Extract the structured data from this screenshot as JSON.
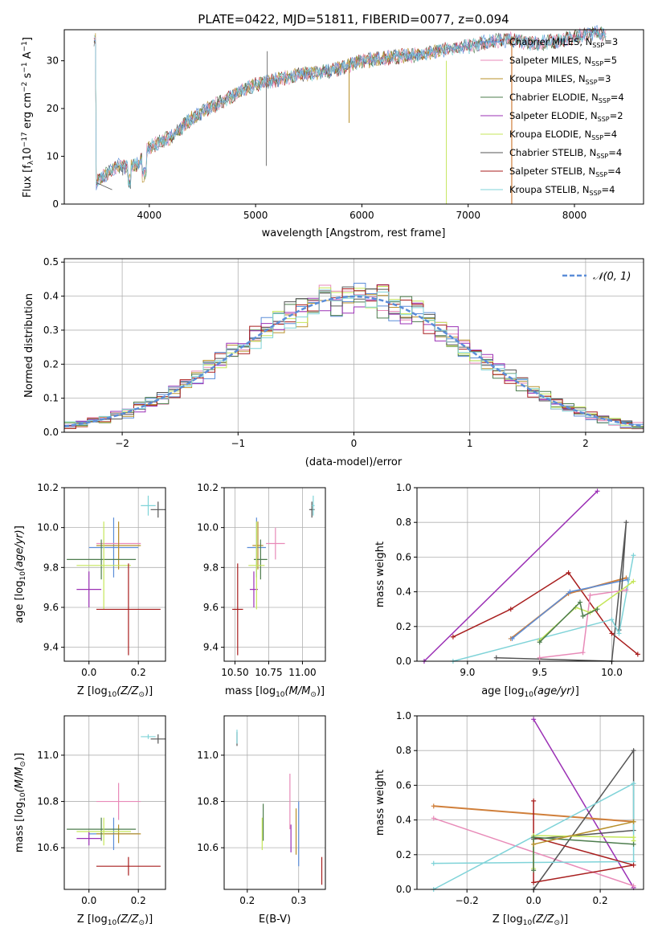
{
  "colors": {
    "chabrier_miles": "#5b8dd8",
    "salpeter_miles": "#e88ab8",
    "kroupa_miles": "#b8902a",
    "chabrier_elodie": "#4e7d4e",
    "salpeter_elodie": "#9b30b5",
    "kroupa_elodie": "#c5e65a",
    "chabrier_stelib": "#555555",
    "salpeter_stelib": "#a81e1e",
    "kroupa_stelib": "#7fd3d8",
    "orange_line": "#d07f3a"
  },
  "chart_data": [
    {
      "type": "line",
      "title": "PLATE=0422, MJD=51811, FIBERID=0077, z=0.094",
      "xlabel": "wavelength [Angstrom, rest frame]",
      "ylabel_parts": [
        "Flux [f",
        "λ",
        "10",
        "−17",
        " erg cm",
        "−2",
        " s",
        "−1",
        " A",
        "−1",
        "]"
      ],
      "xlim": [
        3200,
        8650
      ],
      "ylim": [
        0,
        36.5
      ],
      "xticks": [
        "4000",
        "5000",
        "6000",
        "7000",
        "8000"
      ],
      "yticks": [
        "0",
        "10",
        "20",
        "30"
      ],
      "legend_position": "top-right",
      "legend": [
        {
          "label": "Chabrier MILES, N",
          "sub": "SSP",
          "suffix": "=3",
          "color": "chabrier_miles"
        },
        {
          "label": "Salpeter MILES, N",
          "sub": "SSP",
          "suffix": "=5",
          "color": "salpeter_miles"
        },
        {
          "label": "Kroupa MILES, N",
          "sub": "SSP",
          "suffix": "=3",
          "color": "kroupa_miles"
        },
        {
          "label": "Chabrier ELODIE, N",
          "sub": "SSP",
          "suffix": "=4",
          "color": "chabrier_elodie"
        },
        {
          "label": "Salpeter ELODIE, N",
          "sub": "SSP",
          "suffix": "=2",
          "color": "salpeter_elodie"
        },
        {
          "label": "Kroupa ELODIE, N",
          "sub": "SSP",
          "suffix": "=4",
          "color": "kroupa_elodie"
        },
        {
          "label": "Chabrier STELIB, N",
          "sub": "SSP",
          "suffix": "=4",
          "color": "chabrier_stelib"
        },
        {
          "label": "Salpeter STELIB, N",
          "sub": "SSP",
          "suffix": "=4",
          "color": "salpeter_stelib"
        },
        {
          "label": "Kroupa STELIB, N",
          "sub": "SSP",
          "suffix": "=4",
          "color": "kroupa_stelib"
        }
      ],
      "continuum": [
        [
          3500,
          4.5
        ],
        [
          3700,
          8
        ],
        [
          3800,
          7.5
        ],
        [
          3900,
          8.5
        ],
        [
          4000,
          12
        ],
        [
          4200,
          14
        ],
        [
          4400,
          18
        ],
        [
          4600,
          20.5
        ],
        [
          4800,
          23
        ],
        [
          5000,
          25
        ],
        [
          5200,
          26
        ],
        [
          5400,
          27
        ],
        [
          5600,
          27.5
        ],
        [
          5800,
          28.5
        ],
        [
          6000,
          30
        ],
        [
          6200,
          30.5
        ],
        [
          6400,
          31
        ],
        [
          6600,
          31.5
        ],
        [
          6800,
          32.5
        ],
        [
          7000,
          33
        ],
        [
          7200,
          34
        ],
        [
          7400,
          34.5
        ],
        [
          7600,
          33.5
        ],
        [
          7800,
          34
        ],
        [
          8000,
          35
        ],
        [
          8200,
          36
        ],
        [
          8400,
          34.5
        ]
      ],
      "spikes": [
        [
          3500,
          3.0
        ],
        [
          3650,
          3.0
        ],
        [
          3750,
          6.0
        ],
        [
          5100,
          8.0
        ],
        [
          5110,
          32.0
        ],
        [
          5880,
          17.0
        ],
        [
          6795,
          0.0
        ],
        [
          7410,
          0.0
        ]
      ]
    },
    {
      "type": "histogram",
      "xlabel": "(data-model)/error",
      "ylabel": "Normed distribution",
      "xlim": [
        -2.5,
        2.5
      ],
      "ylim": [
        0,
        0.51
      ],
      "xticks": [
        "−2",
        "−1",
        "0",
        "1",
        "2"
      ],
      "yticks": [
        "0.0",
        "0.1",
        "0.2",
        "0.3",
        "0.4",
        "0.5"
      ],
      "grid": true,
      "legend_position": "top-right",
      "legend_label": "𝒩(0, 1)",
      "normal_color": "#5b8dd8",
      "series_colors": [
        "chabrier_miles",
        "salpeter_miles",
        "kroupa_miles",
        "chabrier_elodie",
        "salpeter_elodie",
        "kroupa_elodie",
        "chabrier_stelib",
        "salpeter_stelib",
        "kroupa_stelib"
      ]
    },
    {
      "type": "scatter",
      "xlabel": "Z [log",
      "ylabel": "age  [log",
      "xlim": [
        -0.1,
        0.31
      ],
      "ylim": [
        9.33,
        10.2
      ],
      "xticks": [
        "0.0",
        "0.2"
      ],
      "yticks": [
        "9.4",
        "9.6",
        "9.8",
        "10.0",
        "10.2"
      ],
      "points": [
        {
          "color": "chabrier_miles",
          "x": 0.1,
          "y": 9.9,
          "ex": 0.1,
          "ey": 0.15
        },
        {
          "color": "salpeter_miles",
          "x": 0.12,
          "y": 9.92,
          "ex": 0.09,
          "ey": 0.08
        },
        {
          "color": "kroupa_miles",
          "x": 0.12,
          "y": 9.91,
          "ex": 0.09,
          "ey": 0.12
        },
        {
          "color": "chabrier_elodie",
          "x": 0.05,
          "y": 9.84,
          "ex": 0.14,
          "ey": 0.1
        },
        {
          "color": "salpeter_elodie",
          "x": 0.0,
          "y": 9.69,
          "ex": 0.05,
          "ey": 0.09
        },
        {
          "color": "kroupa_elodie",
          "x": 0.06,
          "y": 9.81,
          "ex": 0.11,
          "ey": 0.22
        },
        {
          "color": "chabrier_stelib",
          "x": 0.28,
          "y": 10.09,
          "ex": 0.03,
          "ey": 0.04
        },
        {
          "color": "salpeter_stelib",
          "x": 0.16,
          "y": 9.59,
          "ex": 0.13,
          "ey": 0.23
        },
        {
          "color": "kroupa_stelib",
          "x": 0.24,
          "y": 10.11,
          "ex": 0.03,
          "ey": 0.05
        }
      ]
    },
    {
      "type": "scatter",
      "xlabel": "mass [log",
      "ylabel": "",
      "xlim": [
        10.42,
        11.17
      ],
      "ylim": [
        9.33,
        10.2
      ],
      "xticks": [
        "10.50",
        "10.75",
        "11.00"
      ],
      "yticks": [
        "9.4",
        "9.6",
        "9.8",
        "10.0",
        "10.2"
      ],
      "points": [
        {
          "color": "chabrier_miles",
          "x": 10.66,
          "y": 9.9,
          "ex": 0.07,
          "ey": 0.15
        },
        {
          "color": "salpeter_miles",
          "x": 10.8,
          "y": 9.92,
          "ex": 0.07,
          "ey": 0.08
        },
        {
          "color": "kroupa_miles",
          "x": 10.67,
          "y": 9.91,
          "ex": 0.04,
          "ey": 0.12
        },
        {
          "color": "chabrier_elodie",
          "x": 10.69,
          "y": 9.84,
          "ex": 0.05,
          "ey": 0.1
        },
        {
          "color": "salpeter_elodie",
          "x": 10.64,
          "y": 9.69,
          "ex": 0.03,
          "ey": 0.09
        },
        {
          "color": "kroupa_elodie",
          "x": 10.66,
          "y": 9.81,
          "ex": 0.06,
          "ey": 0.22
        },
        {
          "color": "chabrier_stelib",
          "x": 11.07,
          "y": 10.09,
          "ex": 0.02,
          "ey": 0.04
        },
        {
          "color": "salpeter_stelib",
          "x": 10.52,
          "y": 9.59,
          "ex": 0.04,
          "ey": 0.23
        },
        {
          "color": "kroupa_stelib",
          "x": 11.08,
          "y": 10.11,
          "ex": 0.01,
          "ey": 0.05
        }
      ]
    },
    {
      "type": "line",
      "xlabel": "age  [log",
      "ylabel": "mass weight",
      "xlim": [
        8.65,
        10.22
      ],
      "ylim": [
        0,
        1.0
      ],
      "xticks": [
        "9.0",
        "9.5",
        "10.0"
      ],
      "yticks": [
        "0.0",
        "0.2",
        "0.4",
        "0.6",
        "0.8",
        "1.0"
      ],
      "series": [
        {
          "color": "salpeter_elodie",
          "points": [
            [
              8.7,
              0.0
            ],
            [
              9.9,
              0.98
            ]
          ]
        },
        {
          "color": "salpeter_stelib",
          "points": [
            [
              8.9,
              0.14
            ],
            [
              9.3,
              0.3
            ],
            [
              9.7,
              0.51
            ],
            [
              10.0,
              0.16
            ],
            [
              10.18,
              0.04
            ]
          ]
        },
        {
          "color": "orange_line",
          "points": [
            [
              9.3,
              0.13
            ],
            [
              9.7,
              0.39
            ],
            [
              10.1,
              0.48
            ]
          ]
        },
        {
          "color": "chabrier_miles",
          "points": [
            [
              9.31,
              0.13
            ],
            [
              9.71,
              0.4
            ],
            [
              10.11,
              0.47
            ]
          ]
        },
        {
          "color": "chabrier_stelib",
          "points": [
            [
              9.2,
              0.02
            ],
            [
              10.0,
              0.0
            ],
            [
              10.1,
              0.8
            ],
            [
              10.05,
              0.18
            ]
          ]
        },
        {
          "color": "kroupa_stelib",
          "points": [
            [
              8.9,
              0.0
            ],
            [
              10.0,
              0.24
            ],
            [
              10.05,
              0.16
            ],
            [
              10.15,
              0.61
            ]
          ]
        },
        {
          "color": "salpeter_miles",
          "points": [
            [
              9.5,
              0.02
            ],
            [
              9.8,
              0.05
            ],
            [
              9.85,
              0.38
            ],
            [
              10.1,
              0.41
            ]
          ]
        },
        {
          "color": "kroupa_elodie",
          "points": [
            [
              9.5,
              0.12
            ],
            [
              9.75,
              0.31
            ],
            [
              9.85,
              0.28
            ],
            [
              10.15,
              0.46
            ]
          ]
        },
        {
          "color": "chabrier_elodie",
          "points": [
            [
              9.5,
              0.11
            ],
            [
              9.78,
              0.34
            ],
            [
              9.8,
              0.26
            ],
            [
              9.9,
              0.3
            ]
          ]
        }
      ]
    },
    {
      "type": "scatter",
      "xlabel": "Z [log",
      "ylabel": "mass [log",
      "xlim": [
        -0.1,
        0.31
      ],
      "ylim": [
        10.42,
        11.17
      ],
      "xticks": [
        "0.0",
        "0.2"
      ],
      "yticks": [
        "10.6",
        "10.8",
        "11.0"
      ],
      "points": [
        {
          "color": "chabrier_miles",
          "x": 0.1,
          "y": 10.66,
          "ex": 0.1,
          "ey": 0.07
        },
        {
          "color": "salpeter_miles",
          "x": 0.12,
          "y": 10.8,
          "ex": 0.09,
          "ey": 0.08
        },
        {
          "color": "kroupa_miles",
          "x": 0.12,
          "y": 10.66,
          "ex": 0.09,
          "ey": 0.04
        },
        {
          "color": "chabrier_elodie",
          "x": 0.05,
          "y": 10.68,
          "ex": 0.14,
          "ey": 0.05
        },
        {
          "color": "salpeter_elodie",
          "x": 0.0,
          "y": 10.64,
          "ex": 0.05,
          "ey": 0.03
        },
        {
          "color": "kroupa_elodie",
          "x": 0.06,
          "y": 10.67,
          "ex": 0.11,
          "ey": 0.06
        },
        {
          "color": "chabrier_stelib",
          "x": 0.28,
          "y": 11.07,
          "ex": 0.03,
          "ey": 0.02
        },
        {
          "color": "salpeter_stelib",
          "x": 0.16,
          "y": 10.52,
          "ex": 0.13,
          "ey": 0.04
        },
        {
          "color": "kroupa_stelib",
          "x": 0.24,
          "y": 11.08,
          "ex": 0.03,
          "ey": 0.01
        }
      ]
    },
    {
      "type": "scatter",
      "xlabel": "E(B-V)",
      "ylabel": "",
      "xlim": [
        0.155,
        0.352
      ],
      "ylim": [
        10.42,
        11.17
      ],
      "xticks": [
        "0.2",
        "0.3"
      ],
      "yticks": [
        "10.6",
        "10.8",
        "11.0"
      ],
      "points": [
        {
          "color": "chabrier_miles",
          "x": 0.3,
          "y": 10.66,
          "ex": 0.0,
          "ey": 0.14
        },
        {
          "color": "salpeter_miles",
          "x": 0.283,
          "y": 10.8,
          "ex": 0.0,
          "ey": 0.12
        },
        {
          "color": "kroupa_miles",
          "x": 0.295,
          "y": 10.67,
          "ex": 0.0,
          "ey": 0.1
        },
        {
          "color": "chabrier_elodie",
          "x": 0.231,
          "y": 10.71,
          "ex": 0.0,
          "ey": 0.08
        },
        {
          "color": "salpeter_elodie",
          "x": 0.285,
          "y": 10.64,
          "ex": 0.0,
          "ey": 0.06
        },
        {
          "color": "kroupa_elodie",
          "x": 0.229,
          "y": 10.66,
          "ex": 0.0,
          "ey": 0.07
        },
        {
          "color": "chabrier_stelib",
          "x": 0.18,
          "y": 11.07,
          "ex": 0.0,
          "ey": 0.03
        },
        {
          "color": "salpeter_stelib",
          "x": 0.345,
          "y": 10.5,
          "ex": 0.0,
          "ey": 0.06
        },
        {
          "color": "kroupa_stelib",
          "x": 0.18,
          "y": 11.08,
          "ex": 0.0,
          "ey": 0.03
        }
      ]
    },
    {
      "type": "line",
      "xlabel": "Z [log",
      "ylabel": "mass weight",
      "xlim": [
        -0.35,
        0.33
      ],
      "ylim": [
        0,
        1.0
      ],
      "xticks": [
        "−0.2",
        "0.0",
        "0.2"
      ],
      "yticks": [
        "0.0",
        "0.2",
        "0.4",
        "0.6",
        "0.8",
        "1.0"
      ],
      "series": [
        {
          "color": "salpeter_elodie",
          "points": [
            [
              0.0,
              0.98
            ],
            [
              0.3,
              0.01
            ]
          ]
        },
        {
          "color": "orange_line",
          "points": [
            [
              -0.3,
              0.48
            ],
            [
              0.3,
              0.39
            ]
          ]
        },
        {
          "color": "salpeter_miles",
          "points": [
            [
              -0.3,
              0.41
            ],
            [
              0.3,
              0.02
            ]
          ]
        },
        {
          "color": "chabrier_stelib",
          "points": [
            [
              0.0,
              0.0
            ],
            [
              0.3,
              0.8
            ],
            [
              0.3,
              0.34
            ],
            [
              0.0,
              0.29
            ]
          ]
        },
        {
          "color": "kroupa_stelib",
          "points": [
            [
              -0.3,
              0.0
            ],
            [
              0.3,
              0.61
            ],
            [
              0.3,
              0.16
            ],
            [
              -0.3,
              0.15
            ]
          ]
        },
        {
          "color": "salpeter_stelib",
          "points": [
            [
              0.0,
              0.51
            ],
            [
              0.0,
              0.04
            ],
            [
              0.3,
              0.14
            ],
            [
              0.0,
              0.3
            ]
          ]
        },
        {
          "color": "kroupa_elodie",
          "points": [
            [
              0.0,
              0.12
            ],
            [
              0.0,
              0.31
            ],
            [
              0.3,
              0.3
            ],
            [
              0.3,
              0.28
            ]
          ]
        },
        {
          "color": "chabrier_elodie",
          "points": [
            [
              0.0,
              0.11
            ],
            [
              0.0,
              0.3
            ],
            [
              0.3,
              0.26
            ]
          ]
        },
        {
          "color": "kroupa_miles",
          "points": [
            [
              0.0,
              0.26
            ],
            [
              0.3,
              0.39
            ]
          ]
        }
      ]
    }
  ],
  "labels": {
    "solar": "⊙",
    "ten": "10",
    "z_ratio": "(Z/Z",
    "mass_ratio": "(M/M",
    "age_yr": "(age/yr)"
  }
}
